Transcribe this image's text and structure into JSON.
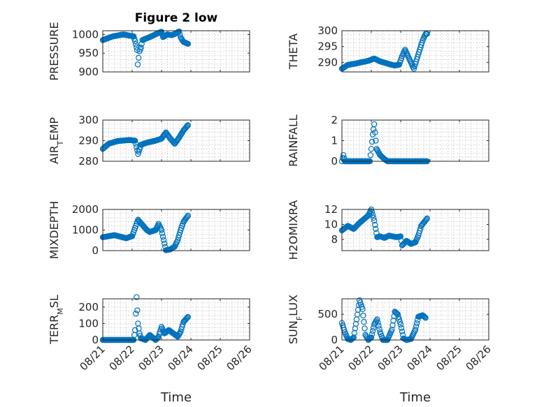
{
  "figure": {
    "title": "Figure 2 low",
    "xlabel": "Time",
    "xticks": [
      "08/21",
      "08/22",
      "08/23",
      "08/24",
      "08/25",
      "08/26"
    ]
  },
  "chart_data": [
    {
      "type": "scatter",
      "title": "Figure 2 low",
      "ylabel_parts": [
        [
          "PRESSURE",
          ""
        ]
      ],
      "xlim": [
        0,
        5
      ],
      "ylim": [
        900,
        1010
      ],
      "yticks": [
        900,
        950,
        1000
      ],
      "marker_color": "#0072bd",
      "key": [
        [
          0.0,
          985
        ],
        [
          0.35,
          995
        ],
        [
          0.7,
          1000
        ],
        [
          0.9,
          997
        ],
        [
          1.05,
          995
        ],
        [
          1.1,
          982
        ],
        [
          1.17,
          958
        ],
        [
          1.19,
          920
        ],
        [
          1.25,
          955
        ],
        [
          1.3,
          965
        ],
        [
          1.35,
          985
        ],
        [
          1.6,
          993
        ],
        [
          1.9,
          1004
        ],
        [
          2.0,
          1007
        ],
        [
          2.05,
          993
        ],
        [
          2.2,
          1000
        ],
        [
          2.35,
          998
        ],
        [
          2.5,
          1003
        ],
        [
          2.6,
          1008
        ],
        [
          2.65,
          992
        ],
        [
          2.75,
          980
        ],
        [
          2.9,
          975
        ]
      ]
    },
    {
      "type": "scatter",
      "ylabel_parts": [
        [
          "THETA",
          ""
        ]
      ],
      "xlim": [
        0,
        5
      ],
      "ylim": [
        287,
        300
      ],
      "yticks": [
        290,
        295,
        300
      ],
      "marker_color": "#0072bd",
      "key": [
        [
          0.0,
          288
        ],
        [
          0.2,
          289.2
        ],
        [
          0.5,
          289.7
        ],
        [
          0.9,
          290.5
        ],
        [
          1.1,
          291.2
        ],
        [
          1.3,
          290.3
        ],
        [
          1.6,
          289.5
        ],
        [
          1.8,
          289
        ],
        [
          1.95,
          289.3
        ],
        [
          2.05,
          292
        ],
        [
          2.15,
          294
        ],
        [
          2.25,
          292
        ],
        [
          2.35,
          290
        ],
        [
          2.45,
          288
        ],
        [
          2.55,
          291
        ],
        [
          2.65,
          294
        ],
        [
          2.75,
          297
        ],
        [
          2.85,
          299
        ],
        [
          2.9,
          299
        ]
      ]
    },
    {
      "type": "scatter",
      "ylabel_parts": [
        [
          "AIR",
          ""
        ],
        [
          "T",
          "sub"
        ],
        [
          "EMP",
          ""
        ]
      ],
      "xlim": [
        0,
        5
      ],
      "ylim": [
        280,
        300
      ],
      "yticks": [
        280,
        290,
        300
      ],
      "marker_color": "#0072bd",
      "key": [
        [
          0.0,
          286
        ],
        [
          0.2,
          288.5
        ],
        [
          0.5,
          289.8
        ],
        [
          0.9,
          290.3
        ],
        [
          1.1,
          290
        ],
        [
          1.15,
          287
        ],
        [
          1.2,
          283.5
        ],
        [
          1.3,
          288
        ],
        [
          1.5,
          289
        ],
        [
          1.8,
          290
        ],
        [
          2.0,
          291
        ],
        [
          2.15,
          294
        ],
        [
          2.3,
          291
        ],
        [
          2.45,
          288.5
        ],
        [
          2.6,
          291.5
        ],
        [
          2.75,
          295
        ],
        [
          2.9,
          297.5
        ]
      ]
    },
    {
      "type": "scatter",
      "ylabel_parts": [
        [
          "RAINFALL",
          ""
        ]
      ],
      "xlim": [
        0,
        5
      ],
      "ylim": [
        0,
        2
      ],
      "yticks": [
        0,
        1,
        2
      ],
      "marker_color": "#0072bd",
      "key": [
        [
          0.0,
          0
        ],
        [
          0.05,
          0.3
        ],
        [
          0.1,
          0
        ],
        [
          0.95,
          0
        ],
        [
          1.0,
          0.6
        ],
        [
          1.05,
          1.3
        ],
        [
          1.1,
          1.8
        ],
        [
          1.18,
          0.6
        ],
        [
          1.3,
          0.3
        ],
        [
          1.45,
          0.1
        ],
        [
          1.55,
          0
        ],
        [
          2.9,
          0
        ]
      ]
    },
    {
      "type": "scatter",
      "ylabel_parts": [
        [
          "MIXDEPTH",
          ""
        ]
      ],
      "xlim": [
        0,
        5
      ],
      "ylim": [
        0,
        2000
      ],
      "yticks": [
        0,
        1000,
        2000
      ],
      "marker_color": "#0072bd",
      "key": [
        [
          0.0,
          650
        ],
        [
          0.4,
          750
        ],
        [
          0.8,
          600
        ],
        [
          1.0,
          700
        ],
        [
          1.2,
          1500
        ],
        [
          1.35,
          1250
        ],
        [
          1.5,
          1000
        ],
        [
          1.6,
          900
        ],
        [
          1.8,
          1000
        ],
        [
          1.9,
          1300
        ],
        [
          2.0,
          1000
        ],
        [
          2.15,
          20
        ],
        [
          2.3,
          60
        ],
        [
          2.45,
          200
        ],
        [
          2.55,
          500
        ],
        [
          2.65,
          1000
        ],
        [
          2.75,
          1400
        ],
        [
          2.9,
          1700
        ]
      ]
    },
    {
      "type": "scatter",
      "ylabel_parts": [
        [
          "H2OMIXRA",
          ""
        ]
      ],
      "xlim": [
        0,
        5
      ],
      "ylim": [
        6.5,
        12
      ],
      "yticks": [
        8,
        10,
        12
      ],
      "marker_color": "#0072bd",
      "key": [
        [
          0.0,
          9.2
        ],
        [
          0.2,
          9.8
        ],
        [
          0.4,
          9.4
        ],
        [
          0.6,
          10.2
        ],
        [
          0.9,
          11.2
        ],
        [
          1.0,
          12
        ],
        [
          1.1,
          10.5
        ],
        [
          1.2,
          8.3
        ],
        [
          1.3,
          8.4
        ],
        [
          1.45,
          8.2
        ],
        [
          1.6,
          8.5
        ],
        [
          1.85,
          8.3
        ],
        [
          2.0,
          8.4
        ],
        [
          2.05,
          7.2
        ],
        [
          2.2,
          7.8
        ],
        [
          2.35,
          7.4
        ],
        [
          2.5,
          7.6
        ],
        [
          2.6,
          8.5
        ],
        [
          2.7,
          9.8
        ],
        [
          2.9,
          10.8
        ]
      ]
    },
    {
      "type": "scatter",
      "ylabel_parts": [
        [
          "TERR",
          ""
        ],
        [
          "M",
          "sub"
        ],
        [
          "SL",
          ""
        ]
      ],
      "xlim": [
        0,
        5
      ],
      "ylim": [
        0,
        250
      ],
      "yticks": [
        0,
        100,
        200
      ],
      "marker_color": "#0072bd",
      "key": [
        [
          0.0,
          0
        ],
        [
          1.05,
          0
        ],
        [
          1.1,
          60
        ],
        [
          1.15,
          260
        ],
        [
          1.2,
          100
        ],
        [
          1.25,
          40
        ],
        [
          1.3,
          10
        ],
        [
          1.45,
          0
        ],
        [
          1.6,
          30
        ],
        [
          1.8,
          0
        ],
        [
          1.9,
          20
        ],
        [
          2.0,
          80
        ],
        [
          2.1,
          40
        ],
        [
          2.25,
          60
        ],
        [
          2.4,
          40
        ],
        [
          2.55,
          20
        ],
        [
          2.65,
          50
        ],
        [
          2.75,
          110
        ],
        [
          2.9,
          140
        ]
      ]
    },
    {
      "type": "scatter",
      "ylabel_parts": [
        [
          "SUN",
          ""
        ],
        [
          "F",
          "sub"
        ],
        [
          "LUX",
          ""
        ]
      ],
      "xlim": [
        0,
        5
      ],
      "ylim": [
        0,
        800
      ],
      "yticks": [
        0,
        500
      ],
      "marker_color": "#0072bd",
      "key": [
        [
          0.0,
          330
        ],
        [
          0.1,
          150
        ],
        [
          0.2,
          20
        ],
        [
          0.3,
          0
        ],
        [
          0.4,
          50
        ],
        [
          0.5,
          400
        ],
        [
          0.6,
          770
        ],
        [
          0.7,
          600
        ],
        [
          0.8,
          100
        ],
        [
          0.9,
          0
        ],
        [
          1.0,
          50
        ],
        [
          1.1,
          300
        ],
        [
          1.2,
          400
        ],
        [
          1.3,
          150
        ],
        [
          1.4,
          0
        ],
        [
          1.55,
          0
        ],
        [
          1.7,
          200
        ],
        [
          1.8,
          550
        ],
        [
          1.9,
          500
        ],
        [
          2.0,
          300
        ],
        [
          2.1,
          30
        ],
        [
          2.2,
          0
        ],
        [
          2.35,
          20
        ],
        [
          2.5,
          200
        ],
        [
          2.6,
          450
        ],
        [
          2.75,
          480
        ],
        [
          2.85,
          430
        ]
      ]
    }
  ]
}
